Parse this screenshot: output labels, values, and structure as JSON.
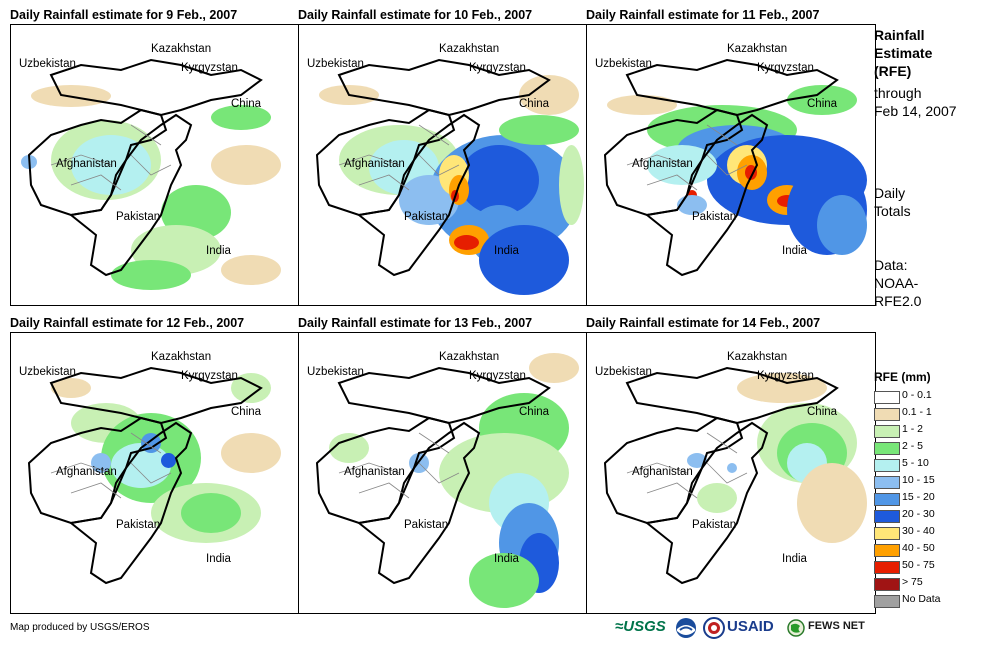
{
  "panels": [
    {
      "title": "Daily Rainfall estimate for 9 Feb., 2007"
    },
    {
      "title": "Daily Rainfall estimate for 10 Feb., 2007"
    },
    {
      "title": "Daily Rainfall estimate for 11 Feb., 2007"
    },
    {
      "title": "Daily Rainfall estimate for 12 Feb., 2007"
    },
    {
      "title": "Daily Rainfall estimate for 13 Feb., 2007"
    },
    {
      "title": "Daily Rainfall estimate for 14 Feb., 2007"
    }
  ],
  "country_labels": {
    "kazakhstan": "Kazakhstan",
    "uzbekistan": "Uzbekistan",
    "kyrgyzstan": "Kyrgyzstan",
    "china": "China",
    "afghanistan": "Afghanistan",
    "pakistan": "Pakistan",
    "india": "India"
  },
  "side": {
    "title_lines": [
      "Rainfall",
      "Estimate",
      "(RFE)"
    ],
    "subtitle_lines": [
      "through",
      "Feb 14, 2007"
    ],
    "totals_lines": [
      "Daily",
      "Totals"
    ],
    "data_lines": [
      "Data:",
      "NOAA-",
      "RFE2.0"
    ]
  },
  "legend": {
    "title": "RFE (mm)",
    "items": [
      {
        "label": "0 - 0.1",
        "color": "#ffffff"
      },
      {
        "label": "0.1 - 1",
        "color": "#f0dcb4"
      },
      {
        "label": "1 - 2",
        "color": "#c8f0b4"
      },
      {
        "label": "2 - 5",
        "color": "#78e678"
      },
      {
        "label": "5 - 10",
        "color": "#b4f0f0"
      },
      {
        "label": "10 - 15",
        "color": "#8cbef0"
      },
      {
        "label": "15 - 20",
        "color": "#5096e6"
      },
      {
        "label": "20 - 30",
        "color": "#1e5adc"
      },
      {
        "label": "30 - 40",
        "color": "#ffe678"
      },
      {
        "label": "40 - 50",
        "color": "#ffa000"
      },
      {
        "label": "50 - 75",
        "color": "#e61e00"
      },
      {
        "label": "> 75",
        "color": "#a01414"
      },
      {
        "label": "No Data",
        "color": "#a0a0a0"
      }
    ]
  },
  "credit": "Map produced by USGS/EROS",
  "logos": {
    "usgs": "≈USGS",
    "usaid": "USAID",
    "fews": "FEWS NET"
  }
}
